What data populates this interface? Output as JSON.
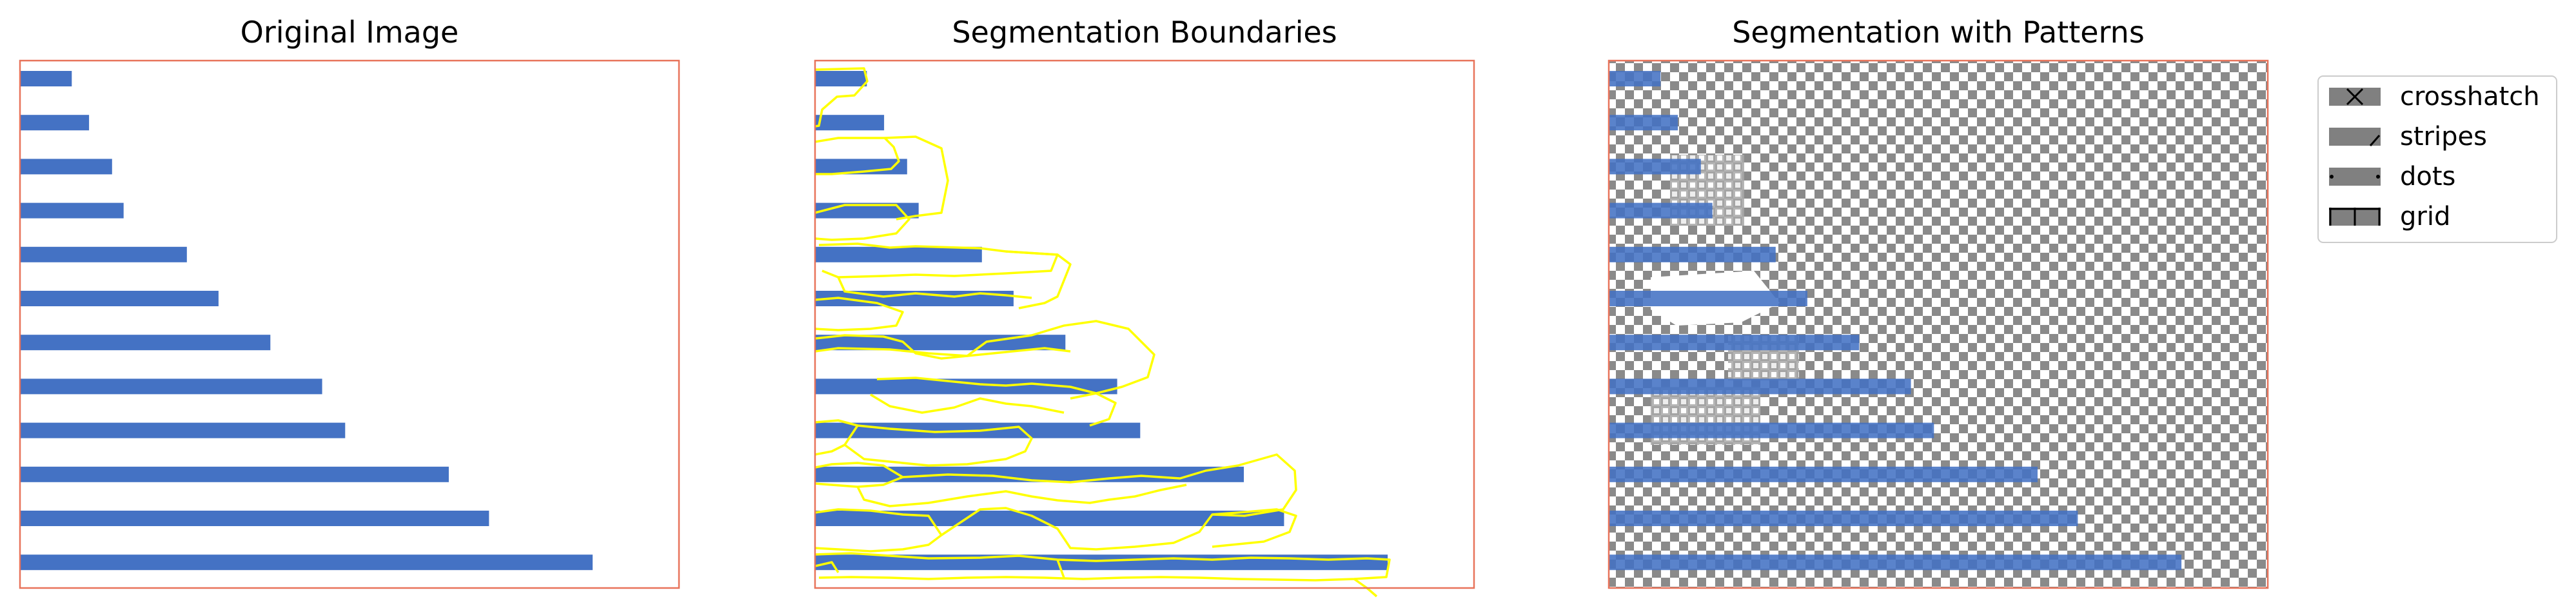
{
  "colors": {
    "bar": "#4472c4",
    "frame": "#e8735a",
    "boundary": "#ffff00",
    "pattern": "#808080",
    "legend_border": "#cccccc"
  },
  "chart_data": [
    {
      "type": "bar",
      "orientation": "horizontal",
      "title": "Original Image",
      "values": [
        18,
        24,
        32,
        36,
        58,
        69,
        87,
        105,
        113,
        149,
        163,
        199
      ],
      "xlim": [
        0,
        229
      ],
      "grid": false
    },
    {
      "type": "bar",
      "orientation": "horizontal",
      "title": "Segmentation Boundaries",
      "values": [
        18,
        24,
        32,
        36,
        58,
        69,
        87,
        105,
        113,
        149,
        163,
        199
      ],
      "xlim": [
        0,
        229
      ],
      "overlay": "segmentation-boundaries",
      "grid": false
    },
    {
      "type": "bar",
      "orientation": "horizontal",
      "title": "Segmentation with Patterns",
      "values": [
        18,
        24,
        32,
        36,
        58,
        69,
        87,
        105,
        113,
        149,
        163,
        199
      ],
      "xlim": [
        0,
        229
      ],
      "overlay": "segment-patterns",
      "grid": false
    }
  ],
  "legend": {
    "position": "right",
    "entries": [
      {
        "label": "crosshatch",
        "icon": "crosshatch-icon"
      },
      {
        "label": "stripes",
        "icon": "stripes-icon"
      },
      {
        "label": "dots",
        "icon": "dots-icon"
      },
      {
        "label": "grid",
        "icon": "grid-icon"
      }
    ]
  }
}
